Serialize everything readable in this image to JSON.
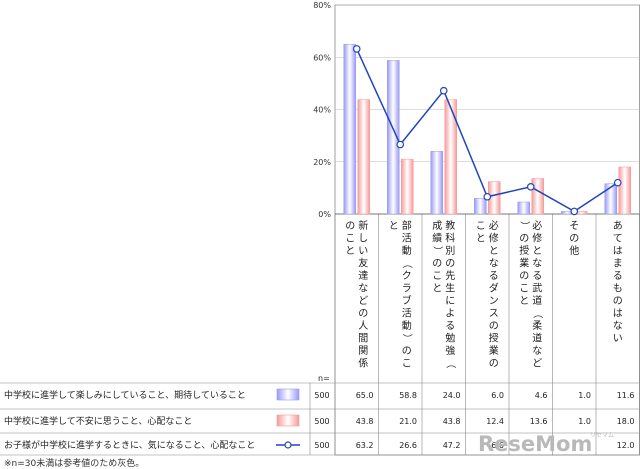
{
  "chart_data": {
    "type": "bar",
    "ylim": [
      0,
      80
    ],
    "yticks": [
      "0%",
      "20%",
      "40%",
      "60%",
      "80%"
    ],
    "grid": true,
    "categories": [
      "新しい友達などの人間関係のこと",
      "部活動（クラブ活動）のこと",
      "教科別の先生による勉強（成績）のこと",
      "必修となるダンスの授業のこと",
      "必修となる武道（柔道など）の授業のこと",
      "その他",
      "あてはまるものはない"
    ],
    "n_header": "n=",
    "series": [
      {
        "name": "中学校に進学して楽しみにしていること、期待していること",
        "kind": "bar",
        "color": "#9a9af5",
        "n": "500",
        "values": [
          65.0,
          58.8,
          24.0,
          6.0,
          4.6,
          1.0,
          11.6
        ],
        "labels": [
          "65.0",
          "58.8",
          "24.0",
          "6.0",
          "4.6",
          "1.0",
          "11.6"
        ]
      },
      {
        "name": "中学校に進学して不安に思うこと、心配なこと",
        "kind": "bar",
        "color": "#f59a9a",
        "n": "500",
        "values": [
          43.8,
          21.0,
          43.8,
          12.4,
          13.6,
          1.0,
          18.0
        ],
        "labels": [
          "43.8",
          "21.0",
          "43.8",
          "12.4",
          "13.6",
          "1.0",
          "18.0"
        ]
      },
      {
        "name": "お子様が中学校に進学するときに、気になること、心配なこと",
        "kind": "line",
        "color": "#2244bb",
        "n": "500",
        "values": [
          63.2,
          26.6,
          47.2,
          6.6,
          10.4,
          1.0,
          12.0
        ],
        "labels": [
          "63.2",
          "26.6",
          "47.2",
          "6.6",
          "",
          "",
          "12.0"
        ]
      }
    ]
  },
  "footnote": "※n=30未満は参考値のため灰色。",
  "watermark": {
    "brand": "ReseMom",
    "sub": "リセマム"
  }
}
